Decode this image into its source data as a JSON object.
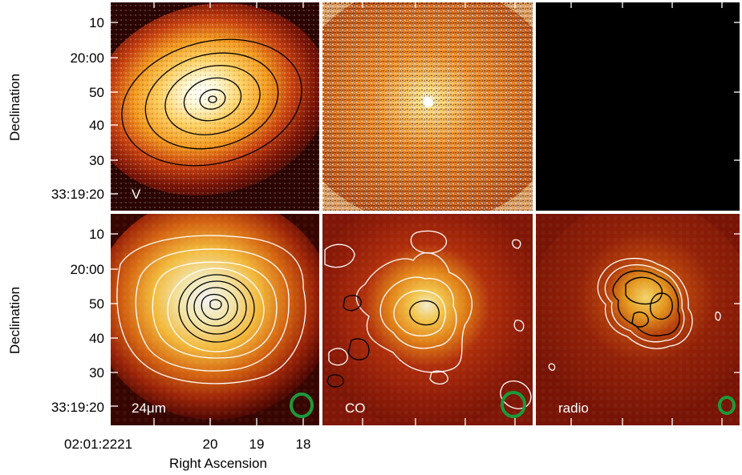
{
  "figure": {
    "y_axis_label": "Declination",
    "x_axis_label": "Right Ascension",
    "y_ticks": [
      "10",
      "20:00",
      "50",
      "40",
      "30",
      "33:19:20"
    ],
    "x_ticks": [
      "02:01:2221",
      "20",
      "19",
      "18"
    ],
    "panels": [
      {
        "label": "V",
        "row": 1,
        "col": 1,
        "colormap": "red-orange-white",
        "contour_color": "#000000",
        "beam": false
      },
      {
        "label": "",
        "row": 1,
        "col": 2,
        "colormap": "red-orange-white (noisy)",
        "contour_color": "",
        "beam": false
      },
      {
        "label": "",
        "row": 1,
        "col": 3,
        "colormap": "black (empty)",
        "contour_color": "",
        "beam": false
      },
      {
        "label": "24μm",
        "row": 2,
        "col": 1,
        "colormap": "red-orange-white",
        "contour_color": "#ffffff",
        "beam": true
      },
      {
        "label": "CO",
        "row": 2,
        "col": 2,
        "colormap": "red-orange-white",
        "contour_color": "#ffffff",
        "beam": true
      },
      {
        "label": "radio",
        "row": 2,
        "col": 3,
        "colormap": "red-orange-white",
        "contour_color": "#ffffff",
        "beam": true
      }
    ],
    "beam_color": "#1a9a3a",
    "frame_color": "#ffffff"
  }
}
